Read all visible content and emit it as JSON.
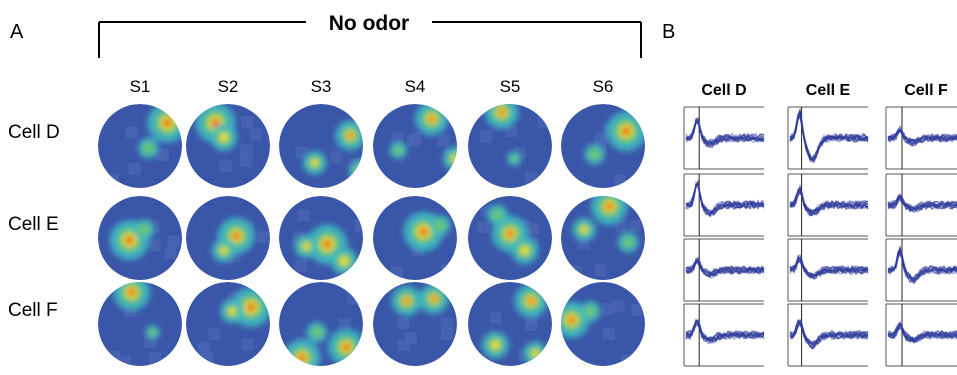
{
  "panels": {
    "a": "A",
    "b": "B"
  },
  "condition": "No odor",
  "sessions": [
    "S1",
    "S2",
    "S3",
    "S4",
    "S5",
    "S6"
  ],
  "cells": [
    "Cell D",
    "Cell E",
    "Cell F"
  ],
  "waveform_titles": [
    "Cell D",
    "Cell E",
    "Cell F"
  ],
  "colors": {
    "map_background": "#3a56a8",
    "map_hot": "#e8401c",
    "map_warm": "#f6e01f",
    "map_mid": "#3fb7c2",
    "waveform": "#2f3c9a",
    "frame": "#555555"
  },
  "waveform_channels_per_cell": 4
}
